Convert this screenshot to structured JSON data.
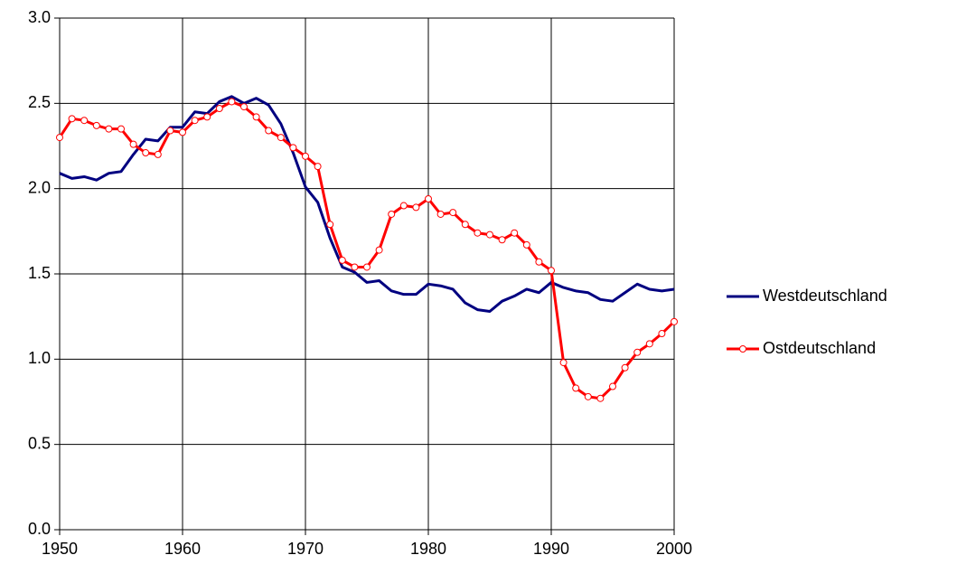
{
  "chart_data": {
    "type": "line",
    "x": [
      1950,
      1951,
      1952,
      1953,
      1954,
      1955,
      1956,
      1957,
      1958,
      1959,
      1960,
      1961,
      1962,
      1963,
      1964,
      1965,
      1966,
      1967,
      1968,
      1969,
      1970,
      1971,
      1972,
      1973,
      1974,
      1975,
      1976,
      1977,
      1978,
      1979,
      1980,
      1981,
      1982,
      1983,
      1984,
      1985,
      1986,
      1987,
      1988,
      1989,
      1990,
      1991,
      1992,
      1993,
      1994,
      1995,
      1996,
      1997,
      1998,
      1999,
      2000
    ],
    "series": [
      {
        "name": "Westdeutschland",
        "color": "#000080",
        "marker": false,
        "values": [
          2.09,
          2.06,
          2.07,
          2.05,
          2.09,
          2.1,
          2.2,
          2.29,
          2.28,
          2.36,
          2.36,
          2.45,
          2.44,
          2.51,
          2.54,
          2.5,
          2.53,
          2.49,
          2.38,
          2.21,
          2.01,
          1.92,
          1.71,
          1.54,
          1.51,
          1.45,
          1.46,
          1.4,
          1.38,
          1.38,
          1.44,
          1.43,
          1.41,
          1.33,
          1.29,
          1.28,
          1.34,
          1.37,
          1.41,
          1.39,
          1.45,
          1.42,
          1.4,
          1.39,
          1.35,
          1.34,
          1.39,
          1.44,
          1.41,
          1.4,
          1.41
        ]
      },
      {
        "name": "Ostdeutschland",
        "color": "#ff0000",
        "marker": true,
        "values": [
          2.3,
          2.41,
          2.4,
          2.37,
          2.35,
          2.35,
          2.26,
          2.21,
          2.2,
          2.34,
          2.33,
          2.4,
          2.42,
          2.47,
          2.51,
          2.48,
          2.42,
          2.34,
          2.3,
          2.24,
          2.19,
          2.13,
          1.79,
          1.58,
          1.54,
          1.54,
          1.64,
          1.85,
          1.9,
          1.89,
          1.94,
          1.85,
          1.86,
          1.79,
          1.74,
          1.73,
          1.7,
          1.74,
          1.67,
          1.57,
          1.52,
          0.98,
          0.83,
          0.78,
          0.77,
          0.84,
          0.95,
          1.04,
          1.09,
          1.15,
          1.22
        ]
      }
    ],
    "xlim": [
      1950,
      2000
    ],
    "xticks": [
      1950,
      1960,
      1970,
      1980,
      1990,
      2000
    ],
    "ylim": [
      0,
      3
    ],
    "yticks": [
      {
        "value": 0,
        "label": "0.0"
      },
      0.5,
      {
        "value": 1,
        "label": "1.0"
      },
      1.5,
      {
        "value": 2,
        "label": "2.0"
      },
      2.5,
      {
        "value": 3,
        "label": "3.0"
      }
    ],
    "grid": true,
    "legend": "right"
  }
}
